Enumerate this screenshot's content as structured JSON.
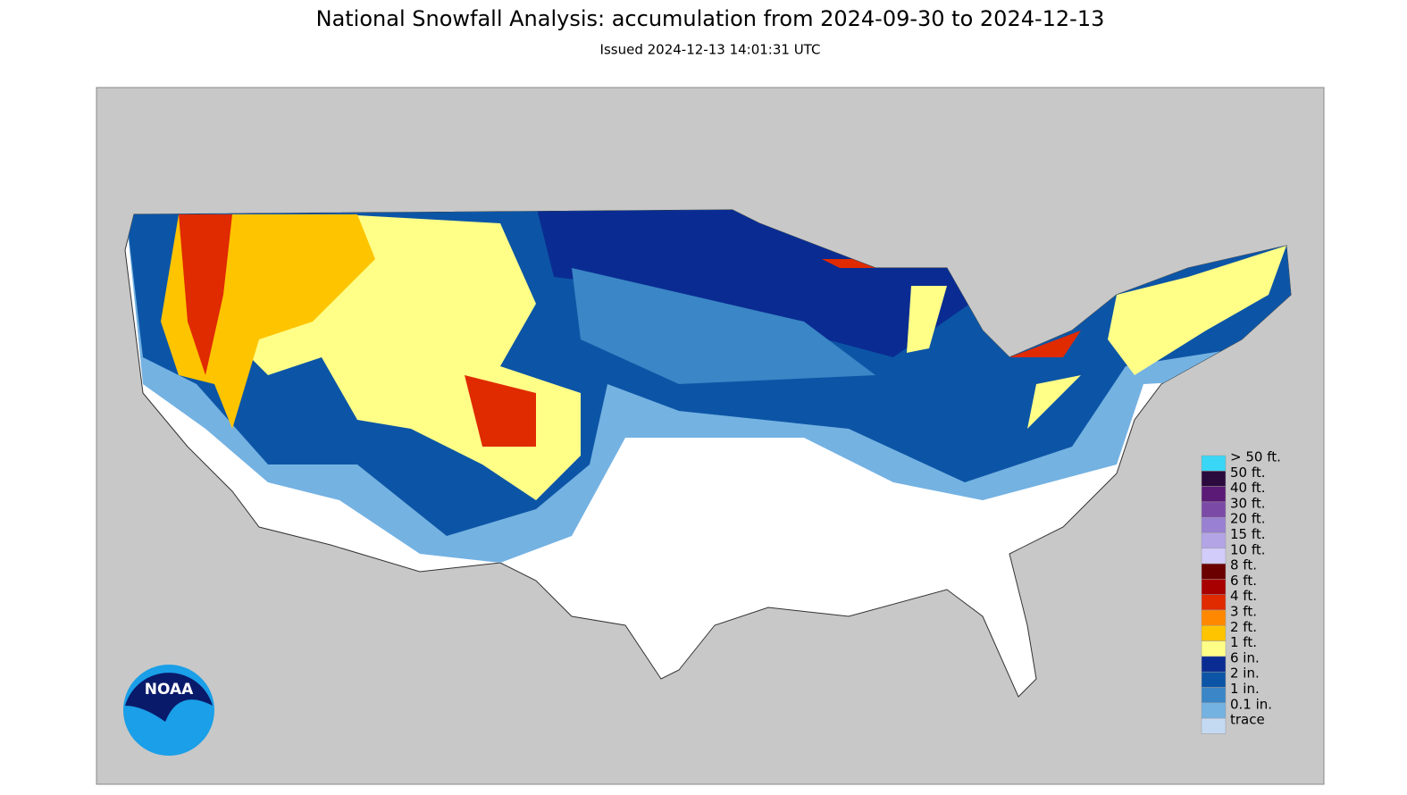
{
  "header": {
    "title": "National Snowfall Analysis: accumulation from 2024-09-30 to 2024-12-13",
    "subtitle": "Issued 2024-12-13 14:01:31 UTC"
  },
  "logo": "NOAA",
  "legend": [
    {
      "label": "> 50 ft.",
      "color": "#3ad6f5"
    },
    {
      "label": "50 ft.",
      "color": "#2b0a3d"
    },
    {
      "label": "40 ft.",
      "color": "#5a1a75"
    },
    {
      "label": "30 ft.",
      "color": "#7b4aa6"
    },
    {
      "label": "20 ft.",
      "color": "#9a80d2"
    },
    {
      "label": "15 ft.",
      "color": "#b3a4e6"
    },
    {
      "label": "10 ft.",
      "color": "#d2ccfa"
    },
    {
      "label": "8 ft.",
      "color": "#6a0000"
    },
    {
      "label": "6 ft.",
      "color": "#a80000"
    },
    {
      "label": "4 ft.",
      "color": "#e02a00"
    },
    {
      "label": "3 ft.",
      "color": "#ff8800"
    },
    {
      "label": "2 ft.",
      "color": "#ffc400"
    },
    {
      "label": "1 ft.",
      "color": "#ffff88"
    },
    {
      "label": "6 in.",
      "color": "#0a2c92"
    },
    {
      "label": "2 in.",
      "color": "#0c55a6"
    },
    {
      "label": "1 in.",
      "color": "#3a86c6"
    },
    {
      "label": "0.1 in.",
      "color": "#74b2e2"
    },
    {
      "label": "trace",
      "color": "#c4daf2"
    }
  ]
}
